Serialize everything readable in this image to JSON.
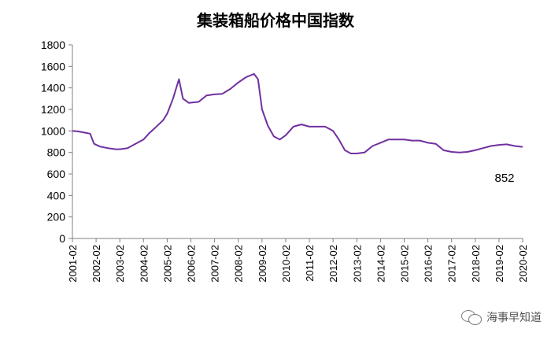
{
  "chart_data": {
    "type": "line",
    "title": "集装箱船价格中国指数",
    "xlabel": "",
    "ylabel": "",
    "ylim": [
      0,
      1800
    ],
    "yticks": [
      0,
      200,
      400,
      600,
      800,
      1000,
      1200,
      1400,
      1600,
      1800
    ],
    "xticks": [
      "2001-02",
      "2002-02",
      "2003-02",
      "2004-02",
      "2005-02",
      "2006-02",
      "2007-02",
      "2008-02",
      "2009-02",
      "2010-02",
      "2011-02",
      "2012-02",
      "2013-02",
      "2014-02",
      "2015-02",
      "2016-02",
      "2017-02",
      "2018-02",
      "2019-02",
      "2020-02"
    ],
    "grid": false,
    "line_color": "#7030A0",
    "annotation": "852",
    "series": [
      {
        "x": [
          "2001-02",
          "2001-05",
          "2001-08",
          "2001-11",
          "2002-01",
          "2002-04",
          "2002-08",
          "2002-12",
          "2003-02",
          "2003-06",
          "2003-10",
          "2004-02",
          "2004-05",
          "2004-08",
          "2004-12",
          "2005-02",
          "2005-05",
          "2005-07",
          "2005-08",
          "2005-10",
          "2006-01",
          "2006-06",
          "2006-10",
          "2007-02",
          "2007-06",
          "2007-10",
          "2008-02",
          "2008-06",
          "2008-10",
          "2008-12",
          "2009-02",
          "2009-05",
          "2009-08",
          "2009-11",
          "2010-02",
          "2010-06",
          "2010-10",
          "2011-02",
          "2011-06",
          "2011-10",
          "2012-02",
          "2012-05",
          "2012-08",
          "2012-11",
          "2013-02",
          "2013-06",
          "2013-10",
          "2014-02",
          "2014-06",
          "2014-10",
          "2015-02",
          "2015-06",
          "2015-10",
          "2016-02",
          "2016-06",
          "2016-10",
          "2017-02",
          "2017-06",
          "2017-10",
          "2018-02",
          "2018-06",
          "2018-10",
          "2019-02",
          "2019-06",
          "2019-10",
          "2020-02"
        ],
        "values": [
          1000,
          995,
          985,
          975,
          880,
          855,
          840,
          830,
          830,
          840,
          880,
          920,
          980,
          1030,
          1100,
          1160,
          1300,
          1420,
          1480,
          1300,
          1260,
          1270,
          1330,
          1340,
          1345,
          1390,
          1450,
          1500,
          1530,
          1480,
          1200,
          1050,
          950,
          920,
          960,
          1040,
          1060,
          1040,
          1040,
          1040,
          1000,
          920,
          820,
          790,
          790,
          800,
          860,
          890,
          920,
          920,
          920,
          910,
          910,
          890,
          880,
          820,
          805,
          800,
          805,
          820,
          840,
          860,
          870,
          875,
          860,
          852
        ]
      }
    ]
  },
  "watermark": {
    "text": "海事早知道",
    "icon": "wechat-icon"
  }
}
